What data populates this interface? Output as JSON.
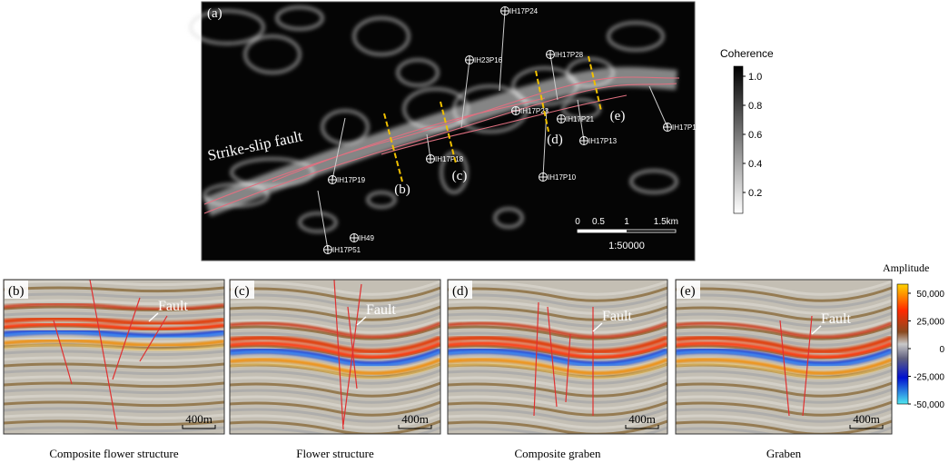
{
  "panel_a": {
    "label": "(a)",
    "fault_label": "Strike-slip fault",
    "wells": [
      "IH17P24",
      "IH23P16",
      "IH17P28",
      "IH17P23",
      "IH17P21",
      "IH17P1",
      "IH17P13",
      "IH17P10",
      "IH17P18",
      "IH17P19",
      "IH49",
      "IH17P51"
    ],
    "section_markers": [
      "(b)",
      "(c)",
      "(d)",
      "(e)"
    ],
    "scale": {
      "ticks": [
        "0",
        "0.5",
        "1",
        "1.5km"
      ],
      "ratio": "1:50000"
    }
  },
  "coherence_bar": {
    "title": "Coherence",
    "ticks": [
      "1.0",
      "0.8",
      "0.6",
      "0.4",
      "0.2"
    ]
  },
  "amplitude_bar": {
    "title": "Amplitude",
    "ticks": [
      "50,000",
      "25,000",
      "0",
      "-25,000",
      "-50,000"
    ]
  },
  "sections": [
    {
      "label": "(b)",
      "fault": "Fault",
      "scale": "400m",
      "caption": "Composite flower structure"
    },
    {
      "label": "(c)",
      "fault": "Fault",
      "scale": "400m",
      "caption": "Flower structure"
    },
    {
      "label": "(d)",
      "fault": "Fault",
      "scale": "400m",
      "caption": "Composite graben"
    },
    {
      "label": "(e)",
      "fault": "Fault",
      "scale": "400m",
      "caption": "Graben"
    }
  ]
}
